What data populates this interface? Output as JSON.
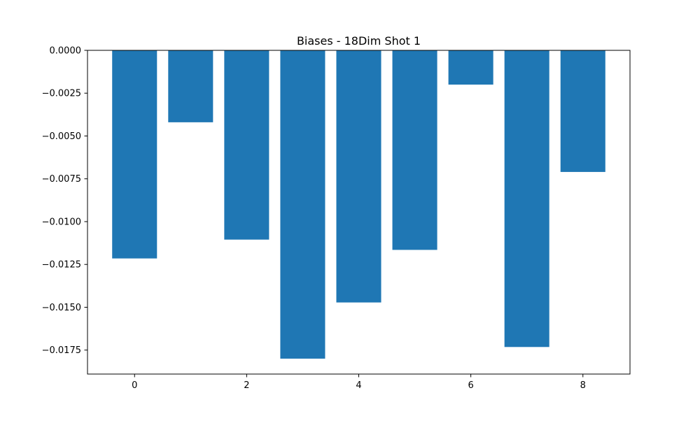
{
  "chart_data": {
    "type": "bar",
    "title": "Biases - 18Dim Shot 1",
    "xlabel": "",
    "ylabel": "",
    "x": [
      0,
      1,
      2,
      3,
      4,
      5,
      6,
      7,
      8
    ],
    "values": [
      -0.01215,
      -0.0042,
      -0.01105,
      -0.018,
      -0.01472,
      -0.01165,
      -0.002,
      -0.01732,
      -0.0071
    ],
    "bar_width": 0.8,
    "xlim": [
      -0.84,
      8.84
    ],
    "ylim": [
      -0.0189,
      0.0
    ],
    "xticks": [
      0,
      2,
      4,
      6,
      8
    ],
    "xtick_labels": [
      "0",
      "2",
      "4",
      "6",
      "8"
    ],
    "yticks": [
      0.0,
      -0.0025,
      -0.005,
      -0.0075,
      -0.01,
      -0.0125,
      -0.015,
      -0.0175
    ],
    "ytick_labels": [
      "0.0000",
      "−0.0025",
      "−0.0050",
      "−0.0075",
      "−0.0100",
      "−0.0125",
      "−0.0150",
      "−0.0175"
    ],
    "grid": false,
    "colors": {
      "bar": "#1f77b4",
      "axes": "#000000",
      "background": "#ffffff"
    }
  }
}
